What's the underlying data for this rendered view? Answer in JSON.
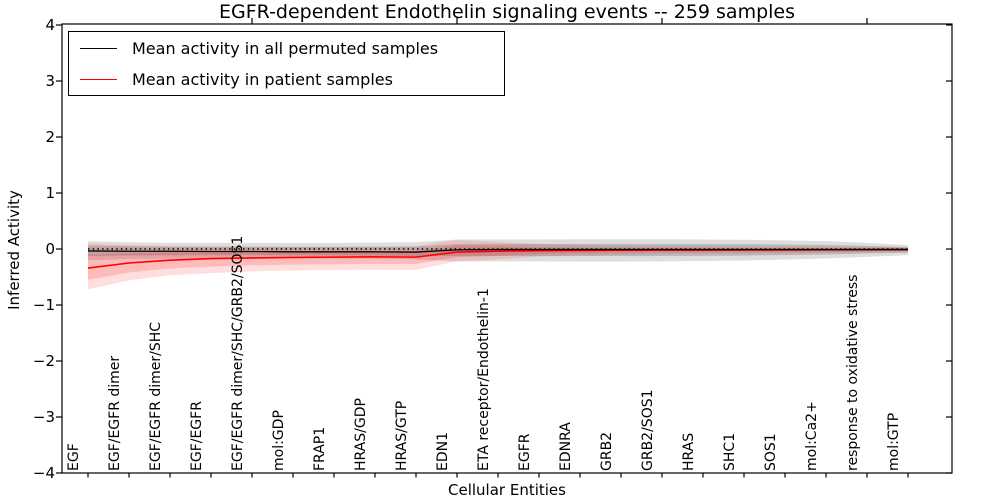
{
  "figure": {
    "title": "EGFR-dependent Endothelin signaling events -- 259 samples",
    "ylabel": "Inferred Activity",
    "xlabel": "Cellular Entities"
  },
  "legend": {
    "items": [
      {
        "label": "Mean activity in all permuted samples",
        "color": "#000000"
      },
      {
        "label": "Mean activity in patient samples",
        "color": "#ff0000"
      }
    ]
  },
  "chart_data": {
    "type": "line",
    "title": "EGFR-dependent Endothelin signaling events -- 259 samples",
    "xlabel": "Cellular Entities",
    "ylabel": "Inferred Activity",
    "ylim": [
      -4,
      4
    ],
    "yticks": [
      4,
      3,
      2,
      1,
      0,
      -1,
      -2,
      -3,
      -4
    ],
    "grid": false,
    "legend_position": "upper left",
    "reference_line": {
      "y": 0,
      "style": "dotted",
      "color": "#000000"
    },
    "categories": [
      "EGF",
      "EGF/EGFR dimer",
      "EGF/EGFR dimer/SHC",
      "EGF/EGFR",
      "EGF/EGFR dimer/SHC/GRB2/SOS1",
      "mol:GDP",
      "FRAP1",
      "HRAS/GDP",
      "HRAS/GTP",
      "EDN1",
      "ETA receptor/Endothelin-1",
      "EGFR",
      "EDNRA",
      "GRB2",
      "GRB2/SOS1",
      "HRAS",
      "SHC1",
      "SOS1",
      "mol:Ca2+",
      "response to oxidative stress",
      "mol:GTP"
    ],
    "x_major_tick_indices": [
      4,
      9,
      14,
      19
    ],
    "series": [
      {
        "name": "Mean activity in all permuted samples",
        "color": "#000000",
        "band_color": "#000000",
        "values": [
          -0.035,
          -0.04,
          -0.04,
          -0.045,
          -0.045,
          -0.05,
          -0.05,
          -0.05,
          -0.055,
          -0.015,
          -0.01,
          -0.01,
          -0.01,
          -0.01,
          -0.01,
          -0.01,
          -0.01,
          -0.01,
          -0.01,
          -0.01,
          -0.01
        ],
        "band_upper": [
          0.14,
          0.12,
          0.11,
          0.11,
          0.11,
          0.11,
          0.11,
          0.115,
          0.12,
          0.17,
          0.17,
          0.17,
          0.175,
          0.175,
          0.175,
          0.17,
          0.165,
          0.155,
          0.14,
          0.11,
          0.07
        ],
        "band_lower": [
          -0.2,
          -0.18,
          -0.17,
          -0.165,
          -0.165,
          -0.165,
          -0.17,
          -0.175,
          -0.185,
          -0.22,
          -0.22,
          -0.22,
          -0.225,
          -0.225,
          -0.22,
          -0.215,
          -0.205,
          -0.19,
          -0.17,
          -0.14,
          -0.11
        ]
      },
      {
        "name": "Mean activity in patient samples",
        "color": "#ff0000",
        "band_color": "#ff0000",
        "values": [
          -0.34,
          -0.25,
          -0.2,
          -0.17,
          -0.16,
          -0.15,
          -0.145,
          -0.14,
          -0.145,
          -0.055,
          -0.04,
          -0.03,
          -0.025,
          -0.022,
          -0.02,
          -0.02,
          -0.018,
          -0.016,
          -0.015,
          -0.012,
          -0.01
        ],
        "band_upper": [
          0.1,
          0.065,
          0.05,
          0.045,
          0.04,
          0.04,
          0.04,
          0.042,
          0.05,
          0.16,
          0.125,
          0.09,
          0.07,
          0.06,
          0.055,
          0.05,
          0.045,
          0.04,
          0.038,
          0.033,
          0.03
        ],
        "band_lower": [
          -0.72,
          -0.56,
          -0.47,
          -0.43,
          -0.4,
          -0.385,
          -0.375,
          -0.37,
          -0.37,
          -0.22,
          -0.185,
          -0.135,
          -0.115,
          -0.1,
          -0.09,
          -0.085,
          -0.08,
          -0.075,
          -0.07,
          -0.06,
          -0.05
        ]
      }
    ]
  }
}
